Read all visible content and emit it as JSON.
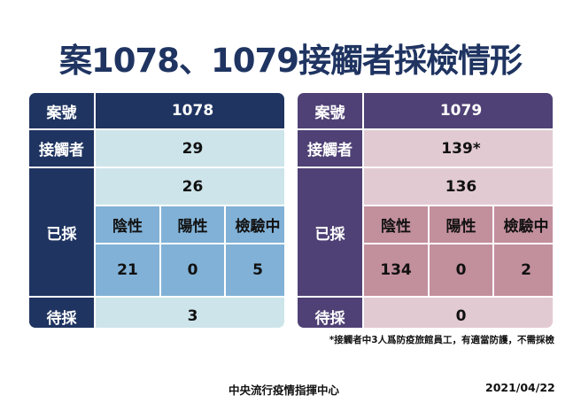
{
  "title": "案1078、1079接觸者採檢情形",
  "labels": {
    "case_no": "案號",
    "contacts": "接觸者",
    "sampled": "已採",
    "negative": "陰性",
    "positive": "陽性",
    "testing": "檢驗中",
    "pending": "待採"
  },
  "tables": [
    {
      "case": "1078",
      "contacts": "29",
      "sampled_total": "26",
      "negative": "21",
      "positive": "0",
      "testing": "5",
      "pending": "3",
      "colors": {
        "header": "#1f3461",
        "light": "#cde5ea",
        "medium": "#81b1d6"
      }
    },
    {
      "case": "1079",
      "contacts": "139*",
      "sampled_total": "136",
      "negative": "134",
      "positive": "0",
      "testing": "2",
      "pending": "0",
      "colors": {
        "header": "#4f4175",
        "light": "#e2cad3",
        "medium": "#c28f9d"
      }
    }
  ],
  "footnote": "*接觸者中3人爲防疫旅館員工，有適當防護，不需採檢",
  "footer": {
    "organization": "中央流行疫情指揮中心",
    "date": "2021/04/22"
  }
}
